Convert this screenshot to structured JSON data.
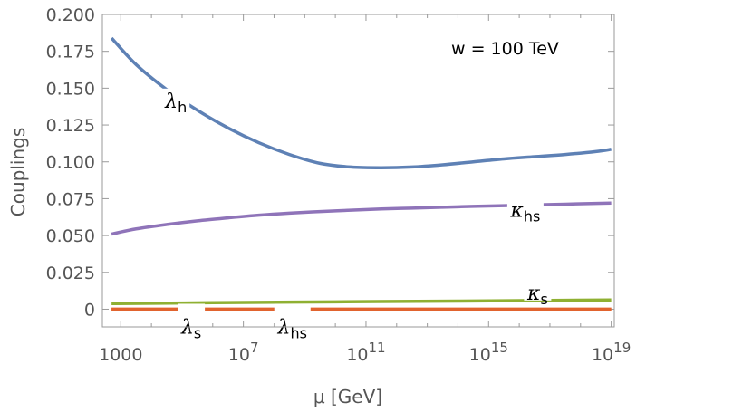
{
  "chart_data": {
    "type": "line",
    "title": "",
    "xlabel": "μ [GeV]",
    "ylabel": "Couplings",
    "annotation": "w = 100 TeV",
    "x_scale": "log10",
    "xlim_log10": [
      2.4,
      19.1
    ],
    "ylim": [
      -0.012,
      0.2
    ],
    "x_ticks": [
      {
        "log10": 3,
        "base": "1000",
        "exp": ""
      },
      {
        "log10": 7,
        "base": "10",
        "exp": "7"
      },
      {
        "log10": 11,
        "base": "10",
        "exp": "11"
      },
      {
        "log10": 15,
        "base": "10",
        "exp": "15"
      },
      {
        "log10": 19,
        "base": "10",
        "exp": "19"
      }
    ],
    "y_ticks": [
      {
        "value": 0,
        "label": "0"
      },
      {
        "value": 0.025,
        "label": "0.025"
      },
      {
        "value": 0.05,
        "label": "0.050"
      },
      {
        "value": 0.075,
        "label": "0.075"
      },
      {
        "value": 0.1,
        "label": "0.100"
      },
      {
        "value": 0.125,
        "label": "0.125"
      },
      {
        "value": 0.15,
        "label": "0.150"
      },
      {
        "value": 0.175,
        "label": "0.175"
      },
      {
        "value": 0.2,
        "label": "0.200"
      }
    ],
    "series": [
      {
        "name": "lambda_h",
        "label_base": "λ",
        "label_sub": "h",
        "color": "#5e81b5",
        "label_log10": 4.8,
        "x_log10": [
          2.7,
          3.5,
          4.5,
          5.5,
          6.5,
          7.5,
          8.5,
          9.5,
          10.5,
          11.5,
          12.5,
          13.5,
          14.5,
          15.5,
          16.5,
          17.5,
          18.5,
          19.0
        ],
        "values": [
          0.184,
          0.166,
          0.149,
          0.135,
          0.123,
          0.113,
          0.105,
          0.099,
          0.0965,
          0.096,
          0.0965,
          0.098,
          0.1,
          0.102,
          0.1035,
          0.105,
          0.107,
          0.1085
        ]
      },
      {
        "name": "kappa_hs",
        "label_base": "κ",
        "label_sub": "hs",
        "color": "#8f74b9",
        "label_log10": 16.2,
        "x_log10": [
          2.7,
          3.5,
          4.5,
          5.5,
          6.5,
          7.5,
          8.5,
          9.5,
          10.5,
          11.5,
          12.5,
          13.5,
          14.5,
          15.5,
          16.5,
          17.5,
          18.5,
          19.0
        ],
        "values": [
          0.051,
          0.0545,
          0.0575,
          0.06,
          0.062,
          0.0638,
          0.0652,
          0.0663,
          0.0672,
          0.068,
          0.0686,
          0.0692,
          0.0698,
          0.0703,
          0.0708,
          0.0713,
          0.0718,
          0.072
        ]
      },
      {
        "name": "kappa_s",
        "label_base": "κ",
        "label_sub": "s",
        "color": "#8fb032",
        "label_log10": 16.6,
        "x_log10": [
          2.7,
          6.0,
          10.0,
          14.0,
          17.0,
          19.0
        ],
        "values": [
          0.0038,
          0.0044,
          0.005,
          0.0055,
          0.006,
          0.0063
        ]
      },
      {
        "name": "lambda_s",
        "label_base": "λ",
        "label_sub": "s",
        "color": "#e1632e",
        "label_log10": 5.3,
        "x_log10": [
          2.7,
          19.0
        ],
        "values": [
          0.0,
          0.0
        ]
      },
      {
        "name": "lambda_hs",
        "label_base": "λ",
        "label_sub": "hs",
        "color": "#e1632e",
        "label_log10": 8.6,
        "x_log10": [
          2.7,
          19.0
        ],
        "values": [
          0.0,
          0.0
        ]
      }
    ]
  }
}
